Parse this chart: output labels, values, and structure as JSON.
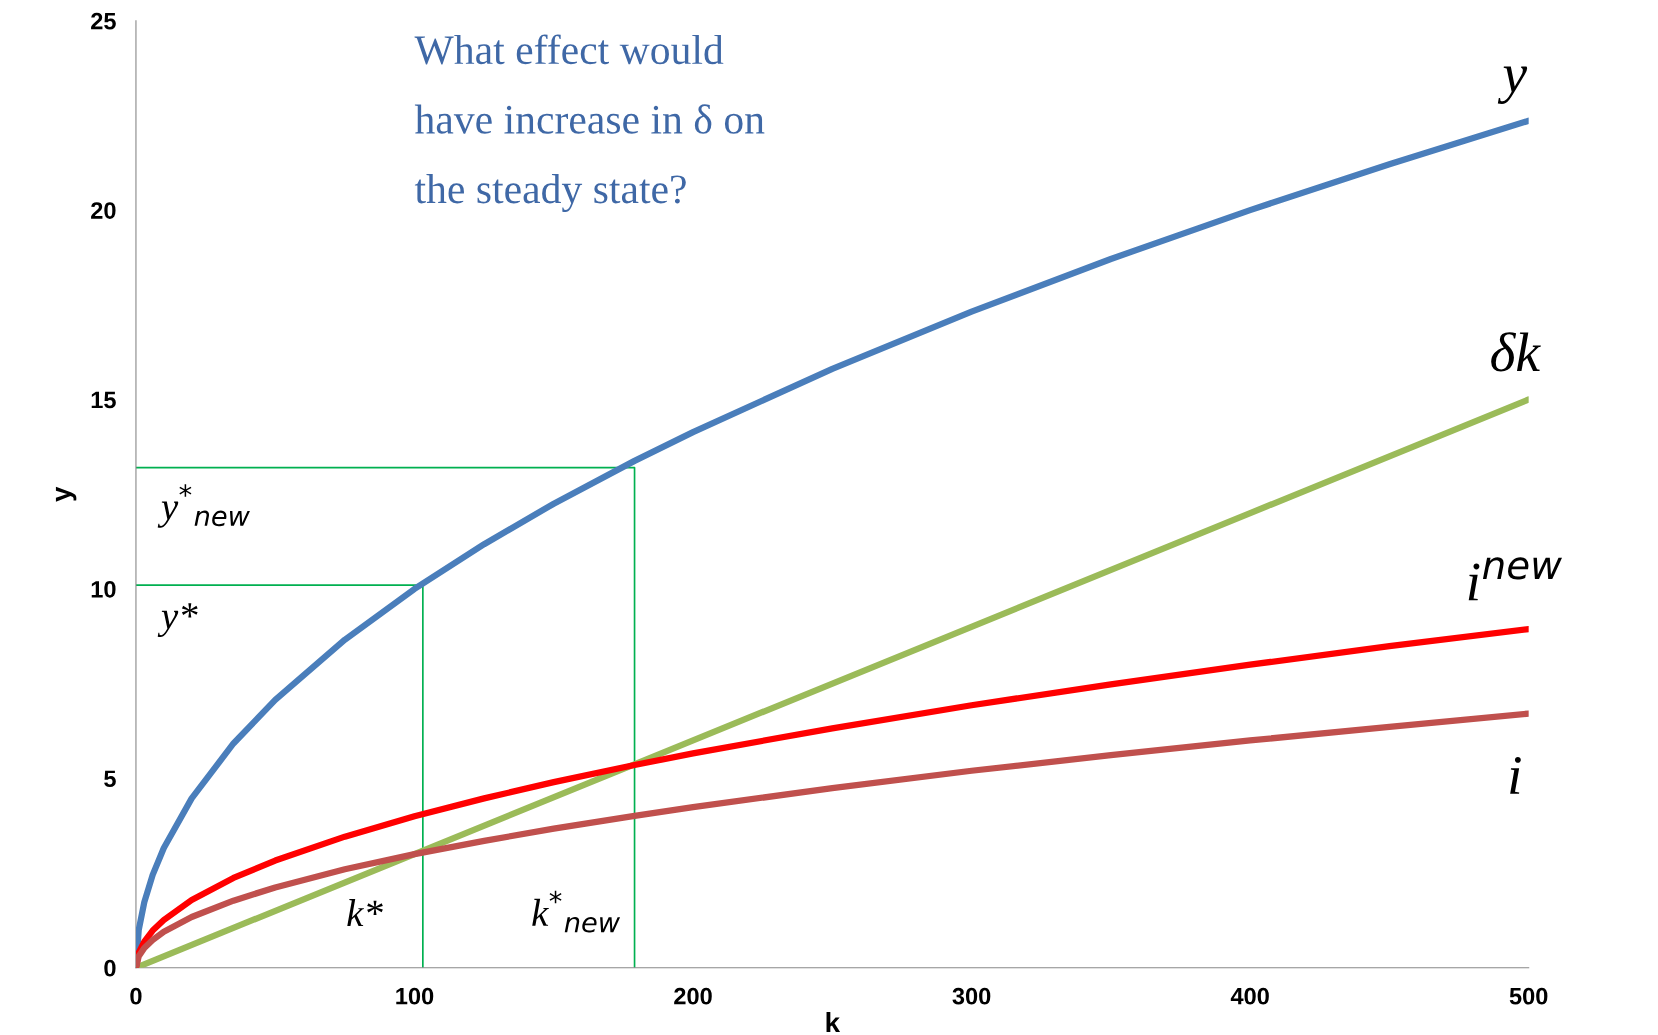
{
  "chart_data": {
    "type": "line",
    "xlabel": "k",
    "ylabel": "y",
    "xlim": [
      0,
      500
    ],
    "ylim": [
      0,
      25
    ],
    "xticks": [
      0,
      100,
      200,
      300,
      400,
      500
    ],
    "yticks": [
      0,
      5,
      10,
      15,
      20,
      25
    ],
    "grid": false,
    "legend": false,
    "series": [
      {
        "name": "y",
        "color": "#4a7ebb",
        "x": [
          0,
          1,
          3,
          6,
          10,
          20,
          35,
          50,
          75,
          100,
          125,
          150,
          179,
          200,
          250,
          300,
          350,
          400,
          450,
          500
        ],
        "values": [
          0,
          1,
          1.73,
          2.45,
          3.16,
          4.47,
          5.92,
          7.07,
          8.66,
          10,
          11.18,
          12.25,
          13.38,
          14.14,
          15.81,
          17.32,
          18.71,
          20,
          21.21,
          22.36
        ]
      },
      {
        "name": "δk",
        "color": "#9bbb59",
        "x": [
          0,
          500
        ],
        "values": [
          0,
          15
        ]
      },
      {
        "name": "i$^{new}$",
        "color": "#ff0000",
        "x": [
          0,
          1,
          3,
          6,
          10,
          20,
          35,
          50,
          75,
          100,
          125,
          150,
          179,
          200,
          250,
          300,
          350,
          400,
          450,
          500
        ],
        "values": [
          0,
          0.4,
          0.69,
          0.98,
          1.26,
          1.79,
          2.37,
          2.83,
          3.46,
          4,
          4.47,
          4.9,
          5.35,
          5.66,
          6.32,
          6.93,
          7.48,
          8,
          8.49,
          8.94
        ]
      },
      {
        "name": "i",
        "color": "#c0504d",
        "x": [
          0,
          1,
          3,
          6,
          10,
          20,
          35,
          50,
          75,
          100,
          125,
          150,
          179,
          200,
          250,
          300,
          350,
          400,
          450,
          500
        ],
        "values": [
          0,
          0.3,
          0.52,
          0.73,
          0.95,
          1.34,
          1.77,
          2.12,
          2.6,
          3,
          3.35,
          3.67,
          4.01,
          4.24,
          4.74,
          5.2,
          5.61,
          6,
          6.36,
          6.71
        ]
      },
      {
        "color": "#00b050",
        "x": [
          0,
          103,
          103
        ],
        "values": [
          10.1,
          10.1,
          0
        ]
      },
      {
        "color": "#00b050",
        "x": [
          0,
          179,
          179
        ],
        "values": [
          13.2,
          13.2,
          0
        ]
      }
    ],
    "annotations": [
      "What effect would\nhave increase in δ on\nthe steady state?",
      {
        "text": "y$^{*}$$_{new}$",
        "x": 0,
        "y": 13.2
      },
      {
        "text": "y*",
        "x": 0,
        "y": 10.1
      },
      {
        "text": "k*",
        "x": 103,
        "y": 0
      },
      {
        "text": "k$^{*}$$_{new}$",
        "x": 179,
        "y": 0
      }
    ]
  }
}
